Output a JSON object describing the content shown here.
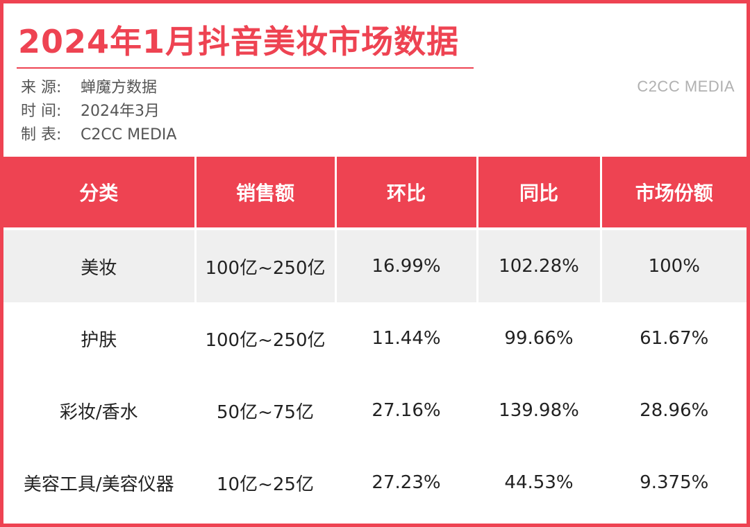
{
  "title": "2024年1月抖音美妆市场数据",
  "meta": [
    {
      "label": "来 源:",
      "value": "蝉魔方数据"
    },
    {
      "label": "时 间:",
      "value": "2024年3月"
    },
    {
      "label": "制 表:",
      "value": "C2CC  MEDIA"
    }
  ],
  "brand": "C2CC MEDIA",
  "colors": {
    "accent": "#ee4352",
    "header_text": "#ffffff",
    "shaded_row": "#efefef"
  },
  "table": {
    "headers": [
      "分类",
      "销售额",
      "环比",
      "同比",
      "市场份额"
    ],
    "rows": [
      {
        "category": "美妆",
        "sales": "100亿~250亿",
        "mom": "16.99%",
        "yoy": "102.28%",
        "share": "100%"
      },
      {
        "category": "护肤",
        "sales": "100亿~250亿",
        "mom": "11.44%",
        "yoy": "99.66%",
        "share": "61.67%"
      },
      {
        "category": "彩妆/香水",
        "sales": "50亿~75亿",
        "mom": "27.16%",
        "yoy": "139.98%",
        "share": "28.96%"
      },
      {
        "category": "美容工具/美容仪器",
        "sales": "10亿~25亿",
        "mom": "27.23%",
        "yoy": "44.53%",
        "share": "9.375%"
      }
    ]
  }
}
